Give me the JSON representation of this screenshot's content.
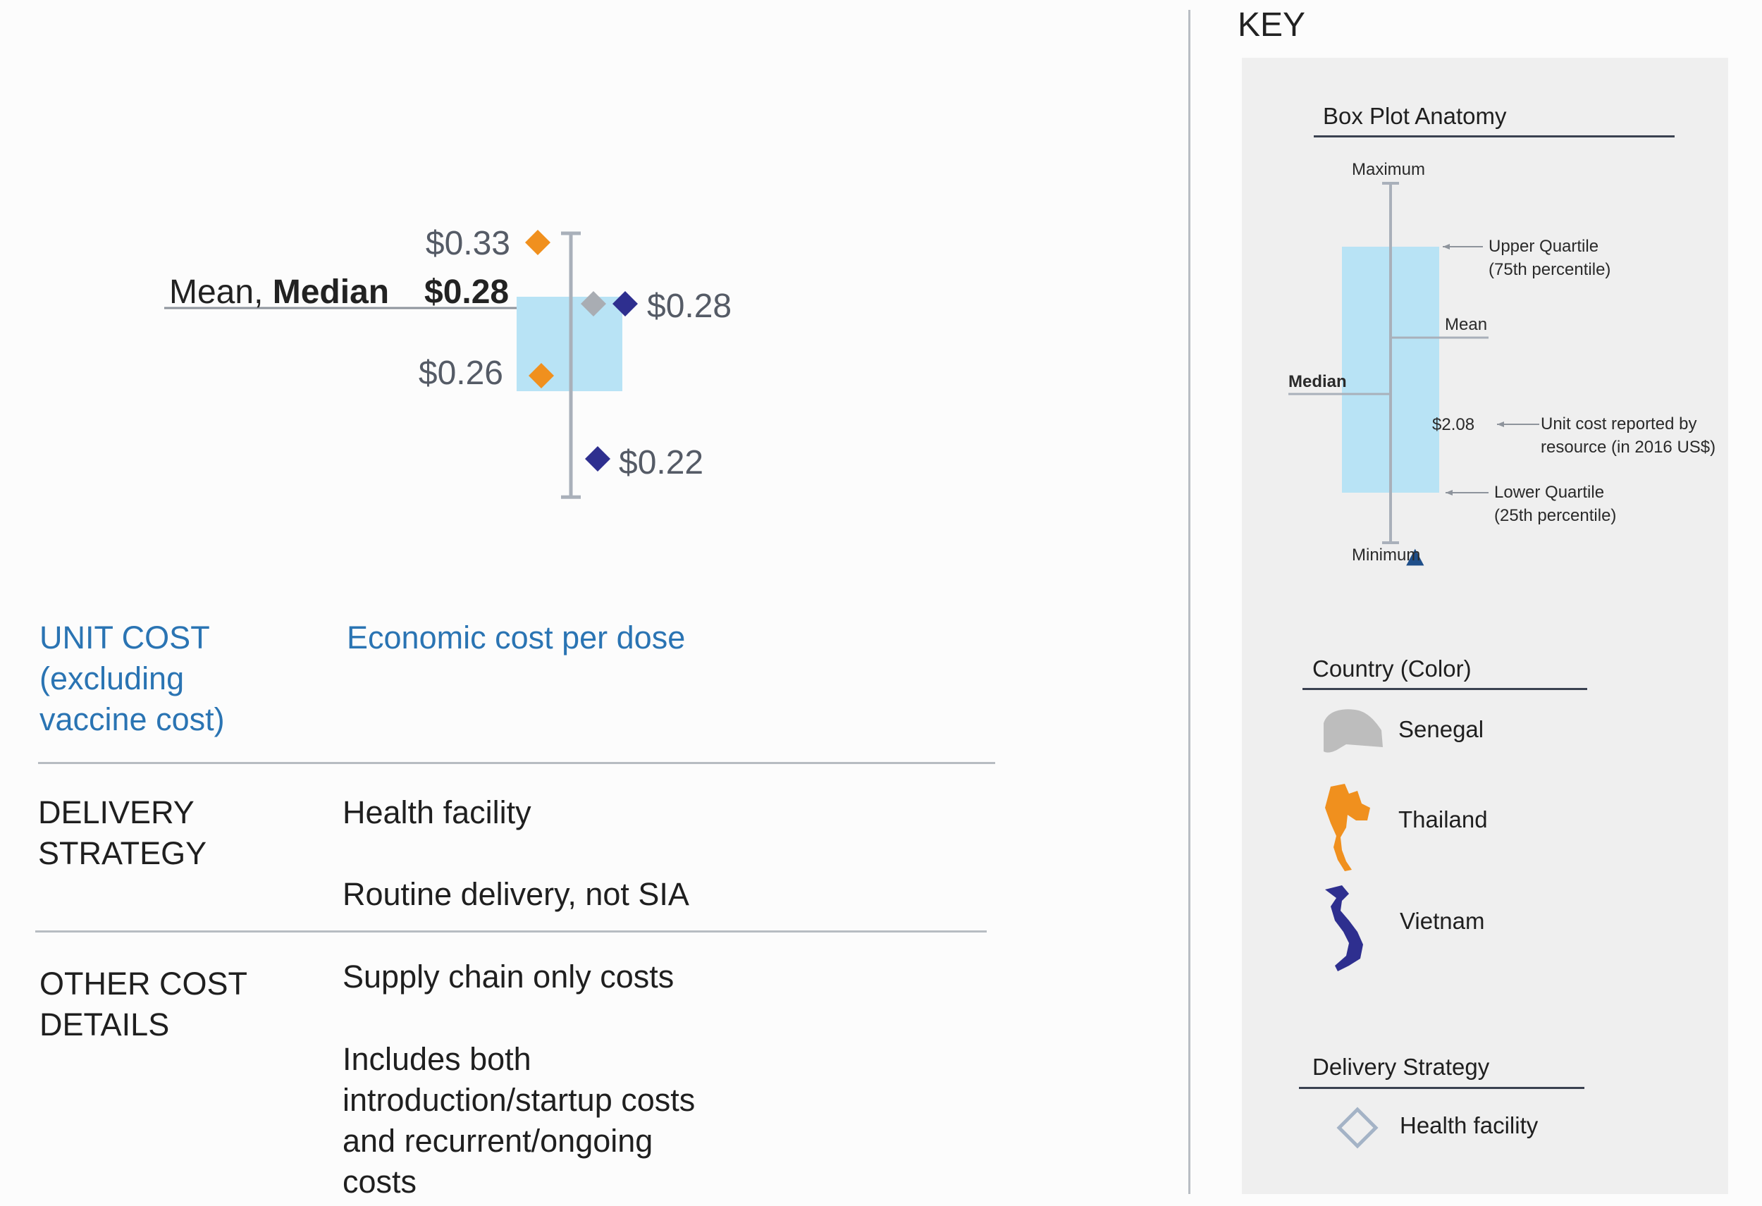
{
  "chart_data": {
    "type": "box",
    "box": {
      "min": 0.22,
      "q1": 0.26,
      "median": 0.28,
      "mean": 0.28,
      "q3": 0.33,
      "max": 0.33
    },
    "points": [
      {
        "country": "Thailand",
        "value": 0.33,
        "label": "$0.33",
        "color": "#f0901e"
      },
      {
        "country": "Senegal",
        "value": 0.28,
        "label": "",
        "color": "#a9adb3"
      },
      {
        "country": "Vietnam",
        "value": 0.28,
        "label": "$0.28",
        "color": "#2e2f8f"
      },
      {
        "country": "Thailand",
        "value": 0.26,
        "label": "$0.26",
        "color": "#f0901e"
      },
      {
        "country": "Vietnam",
        "value": 0.22,
        "label": "$0.22",
        "color": "#2e2f8f"
      }
    ],
    "mean_median": {
      "prefix": "Mean, ",
      "bold": "Median",
      "value": "$0.28"
    },
    "colors": {
      "box_fill": "#b8e3f5",
      "whisker": "#a9b0ba",
      "ref_line": "#8e949c"
    }
  },
  "table": {
    "unit_cost": {
      "label_lines": [
        "UNIT COST",
        "(excluding",
        "vaccine cost)"
      ],
      "value": "Economic cost per dose"
    },
    "delivery": {
      "label_lines": [
        "DELIVERY",
        "STRATEGY"
      ],
      "values": [
        "Health facility",
        "Routine delivery, not SIA"
      ]
    },
    "other": {
      "label_lines": [
        "OTHER COST",
        "DETAILS"
      ],
      "value1": "Supply chain only costs",
      "value2_lines": [
        "Includes both",
        "introduction/startup costs",
        "and recurrent/ongoing",
        "costs"
      ]
    }
  },
  "key": {
    "title": "KEY",
    "anatomy": {
      "title": "Box Plot Anatomy",
      "maximum": "Maximum",
      "minimum": "Minimum",
      "upper_quartile": [
        "Upper Quartile",
        "(75th percentile)"
      ],
      "lower_quartile": [
        "Lower Quartile",
        "(25th percentile)"
      ],
      "mean": "Mean",
      "median": "Median",
      "example_value": "$2.08",
      "unit_cost": [
        "Unit cost reported by",
        "resource (in 2016 US$)"
      ]
    },
    "country": {
      "title": "Country (Color)",
      "items": [
        {
          "name": "Senegal",
          "color": "#bdbdbd"
        },
        {
          "name": "Thailand",
          "color": "#f0901e"
        },
        {
          "name": "Vietnam",
          "color": "#2e2f8f"
        }
      ]
    },
    "delivery": {
      "title": "Delivery Strategy",
      "item": "Health facility"
    }
  }
}
